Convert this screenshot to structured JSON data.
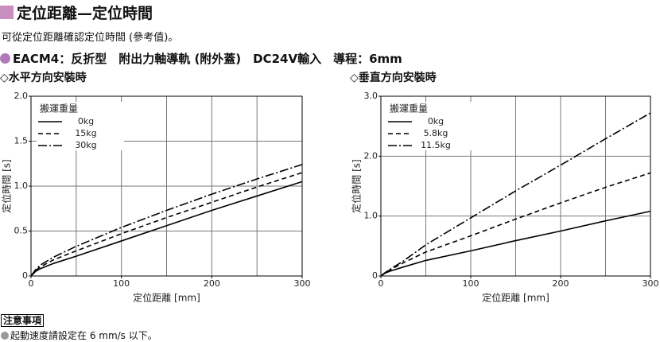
{
  "header": {
    "title": "定位距離—定位時間",
    "description": "可從定位距離確認定位時間 (參考值)。",
    "product": "EACM4：反折型　附出力軸導軌 (附外蓋)　DC24V輸入　導程：6mm"
  },
  "notes": {
    "title": "注意事項",
    "items": [
      "起動速度請設定在 6 mm/s 以下。"
    ]
  },
  "chart_data": [
    {
      "type": "line",
      "title": "◇水平方向安裝時",
      "x_label": "定位距離 [mm]",
      "y_label": "定位時間 [s]",
      "legend_title": "搬運重量",
      "grid": true,
      "xlim": [
        0,
        300
      ],
      "xticks": [
        0,
        100,
        200,
        300
      ],
      "xgrid": [
        50,
        100,
        150,
        200,
        250
      ],
      "ylim": [
        0,
        2
      ],
      "yticks": [
        0,
        0.5,
        {
          "value": 1,
          "label": "1.0"
        },
        1.5,
        {
          "value": 2,
          "label": "2.0"
        }
      ],
      "x": [
        0,
        5,
        10,
        25,
        50,
        100,
        150,
        200,
        250,
        300
      ],
      "series": [
        {
          "name": "0kg",
          "color": "#000000",
          "style": "solid",
          "values": [
            0,
            0.05,
            0.08,
            0.14,
            0.22,
            0.39,
            0.56,
            0.73,
            0.89,
            1.05
          ]
        },
        {
          "name": "15kg",
          "color": "#000000",
          "style": "dashed",
          "values": [
            0,
            0.06,
            0.1,
            0.18,
            0.28,
            0.47,
            0.65,
            0.82,
            0.99,
            1.15
          ]
        },
        {
          "name": "30kg",
          "color": "#000000",
          "style": "dashdot",
          "values": [
            0,
            0.07,
            0.12,
            0.21,
            0.33,
            0.54,
            0.73,
            0.91,
            1.08,
            1.24
          ]
        }
      ]
    },
    {
      "type": "line",
      "title": "◇垂直方向安裝時",
      "x_label": "定位距離 [mm]",
      "y_label": "定位時間 [s]",
      "legend_title": "搬運重量",
      "grid": true,
      "xlim": [
        0,
        300
      ],
      "xticks": [
        0,
        100,
        200,
        300
      ],
      "xgrid": [
        50,
        100,
        150,
        200,
        250
      ],
      "ylim": [
        0,
        3
      ],
      "yticks": [
        0,
        {
          "value": 1,
          "label": "1.0"
        },
        {
          "value": 2,
          "label": "2.0"
        },
        {
          "value": 3,
          "label": "3.0"
        }
      ],
      "x": [
        0,
        5,
        10,
        25,
        50,
        100,
        150,
        200,
        250,
        300
      ],
      "series": [
        {
          "name": "0kg",
          "color": "#000000",
          "style": "solid",
          "values": [
            0,
            0.05,
            0.08,
            0.15,
            0.26,
            0.42,
            0.59,
            0.75,
            0.92,
            1.08
          ]
        },
        {
          "name": "5.8kg",
          "color": "#000000",
          "style": "dashed",
          "values": [
            0,
            0.06,
            0.1,
            0.22,
            0.4,
            0.67,
            0.95,
            1.22,
            1.48,
            1.72
          ]
        },
        {
          "name": "11.5kg",
          "color": "#000000",
          "style": "dashdot",
          "values": [
            0,
            0.06,
            0.11,
            0.25,
            0.52,
            0.97,
            1.42,
            1.85,
            2.29,
            2.72
          ]
        }
      ]
    }
  ]
}
